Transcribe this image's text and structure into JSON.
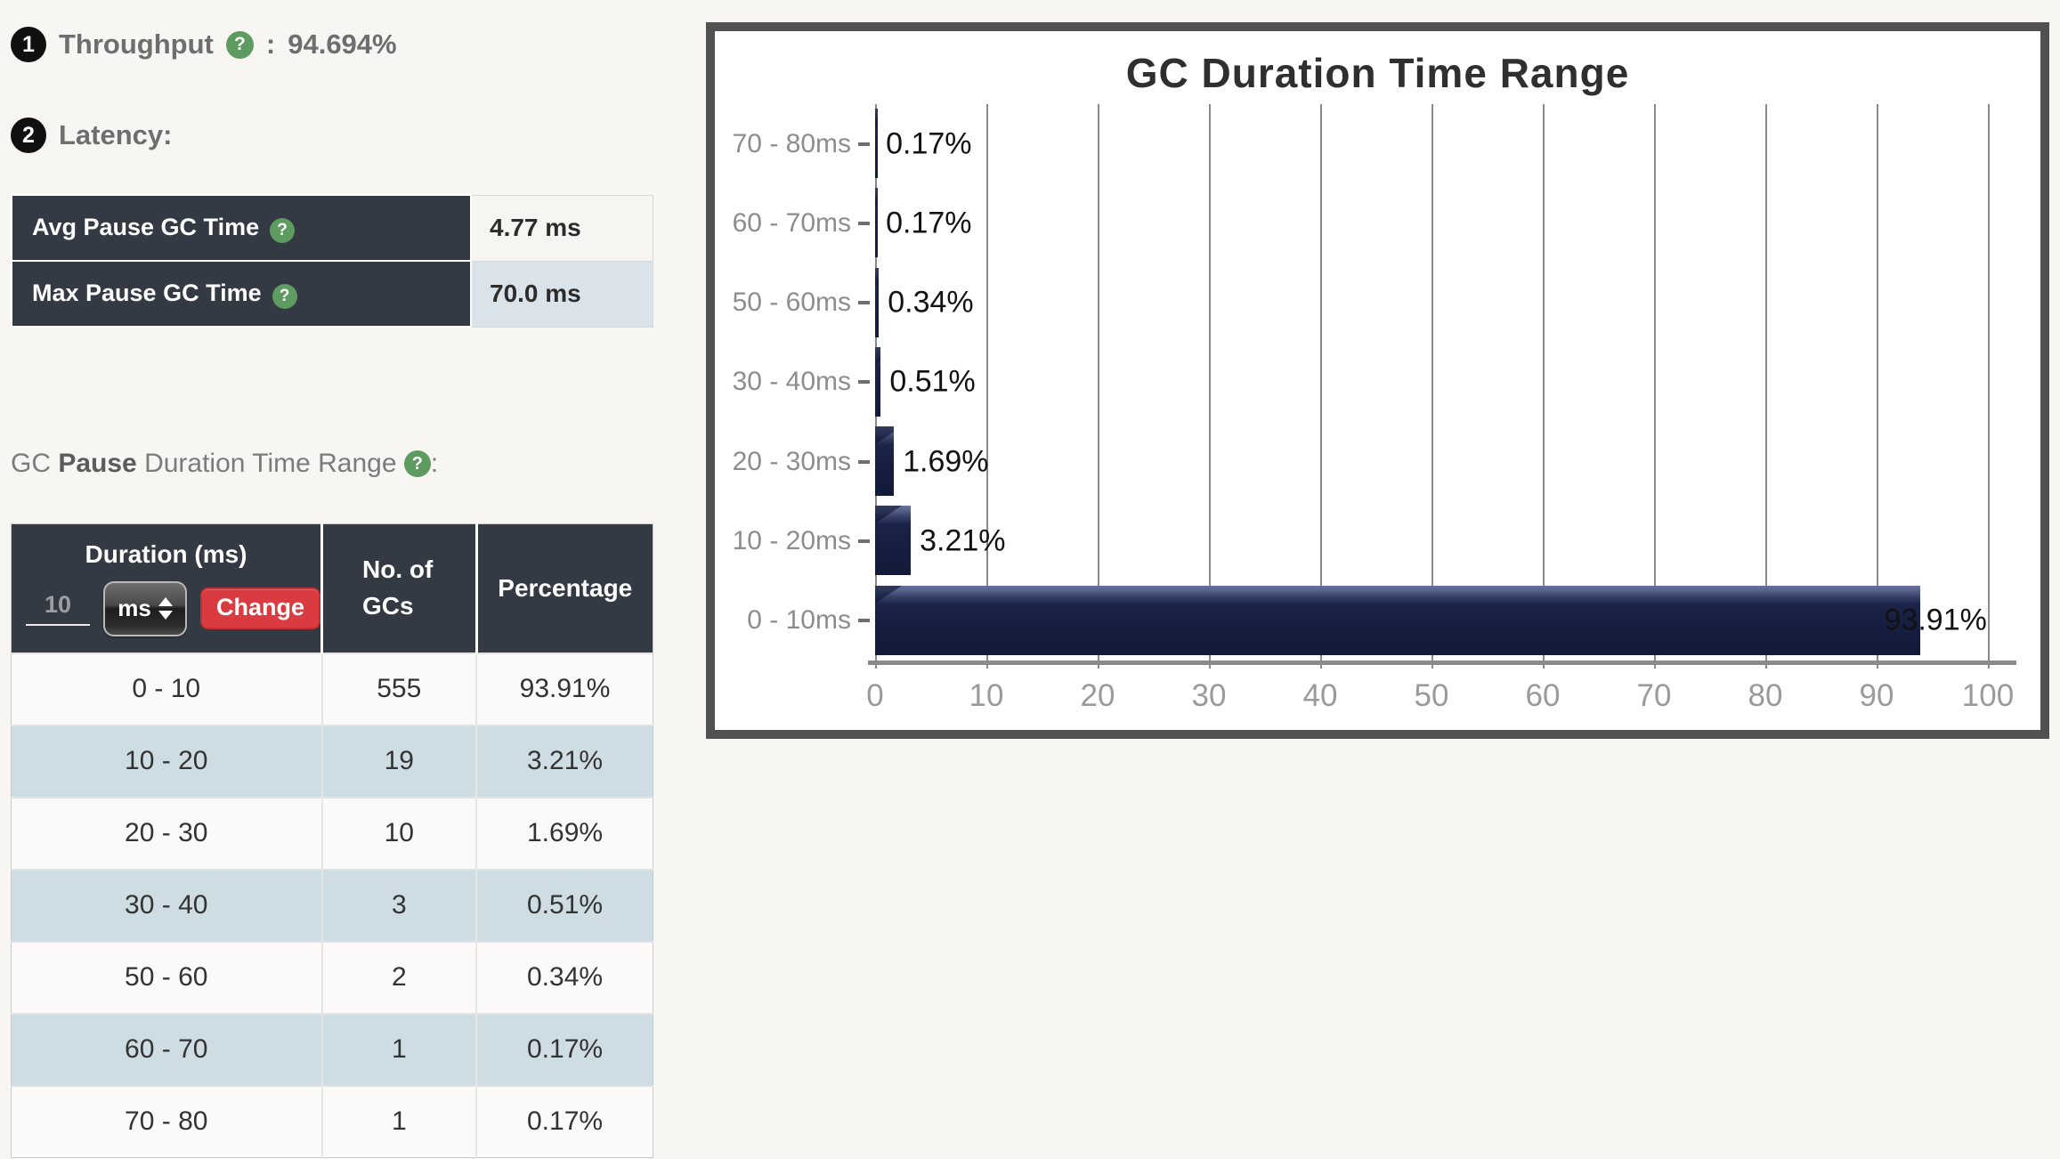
{
  "throughput": {
    "badge": "1",
    "label": "Throughput",
    "colon": ":",
    "value": "94.694%"
  },
  "latency": {
    "badge": "2",
    "label": "Latency:",
    "rows": [
      {
        "label": "Avg Pause GC Time",
        "value": "4.77 ms"
      },
      {
        "label": "Max Pause GC Time",
        "value": "70.0 ms"
      }
    ]
  },
  "duration_section": {
    "title_prefix": "GC ",
    "title_bold": "Pause",
    "title_rest": " Duration Time Range ",
    "title_colon": ":",
    "input_value": "10",
    "unit_selected": "ms",
    "change_label": "Change",
    "columns": [
      "Duration (ms)",
      "No. of GCs",
      "Percentage"
    ],
    "rows": [
      [
        "0 - 10",
        "555",
        "93.91%"
      ],
      [
        "10 - 20",
        "19",
        "3.21%"
      ],
      [
        "20 - 30",
        "10",
        "1.69%"
      ],
      [
        "30 - 40",
        "3",
        "0.51%"
      ],
      [
        "50 - 60",
        "2",
        "0.34%"
      ],
      [
        "60 - 70",
        "1",
        "0.17%"
      ],
      [
        "70 - 80",
        "1",
        "0.17%"
      ]
    ]
  },
  "chart_data": {
    "type": "bar",
    "orientation": "horizontal",
    "title": "GC Duration Time Range",
    "categories": [
      "70 - 80ms",
      "60 - 70ms",
      "50 - 60ms",
      "30 - 40ms",
      "20 - 30ms",
      "10 - 20ms",
      "0 - 10ms"
    ],
    "values": [
      0.17,
      0.17,
      0.34,
      0.51,
      1.69,
      3.21,
      93.91
    ],
    "value_labels": [
      "0.17%",
      "0.17%",
      "0.34%",
      "0.51%",
      "1.69%",
      "3.21%",
      "93.91%"
    ],
    "xlim": [
      0,
      100
    ],
    "x_ticks": [
      "0",
      "10",
      "20",
      "30",
      "40",
      "50",
      "60",
      "70",
      "80",
      "90",
      "100"
    ],
    "grid": true,
    "bar_color": "#151e40",
    "bevel_color": "#67719a",
    "grid_color": "#8a8a8a"
  }
}
